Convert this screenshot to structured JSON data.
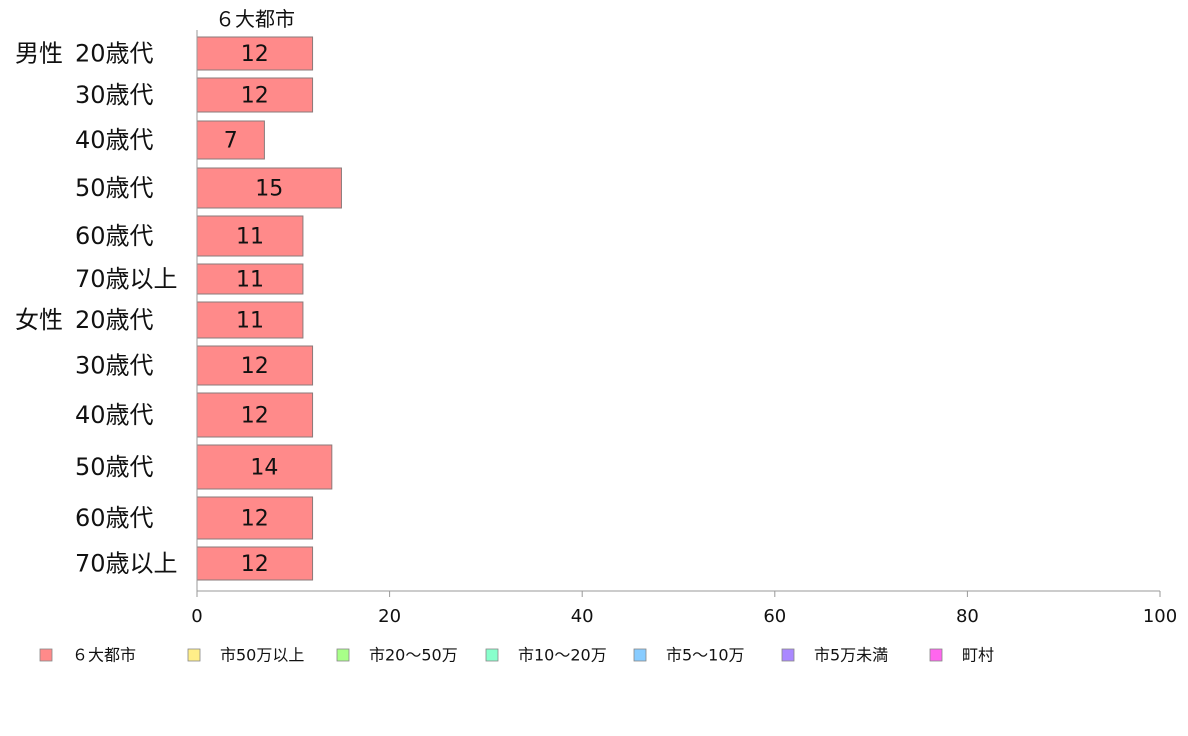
{
  "chart_data": {
    "type": "bar",
    "orientation": "horizontal",
    "column_header": "６大都市",
    "groups": [
      {
        "label": "男性",
        "categories": [
          "20歳代",
          "30歳代",
          "40歳代",
          "50歳代",
          "60歳代",
          "70歳以上"
        ],
        "values": [
          12,
          12,
          7,
          15,
          11,
          11
        ]
      },
      {
        "label": "女性",
        "categories": [
          "20歳代",
          "30歳代",
          "40歳代",
          "50歳代",
          "60歳代",
          "70歳以上"
        ],
        "values": [
          11,
          12,
          12,
          14,
          12,
          12
        ]
      }
    ],
    "xlim": [
      0,
      100
    ],
    "xticks": [
      0,
      20,
      40,
      60,
      80,
      100
    ],
    "legend": {
      "position": "bottom",
      "entries": [
        {
          "label": "６大都市",
          "color": "#ff8a8a"
        },
        {
          "label": "市50万以上",
          "color": "#ffee88"
        },
        {
          "label": "市20〜50万",
          "color": "#a8ff88"
        },
        {
          "label": "市10〜20万",
          "color": "#88ffcc"
        },
        {
          "label": "市5〜10万",
          "color": "#88ccff"
        },
        {
          "label": "市5万未満",
          "color": "#aa88ff"
        },
        {
          "label": "町村",
          "color": "#ff66ee"
        }
      ]
    },
    "bar_color": "#ff8a8a",
    "bar_stroke": "#8a7a7a",
    "axis_color": "#999999"
  }
}
